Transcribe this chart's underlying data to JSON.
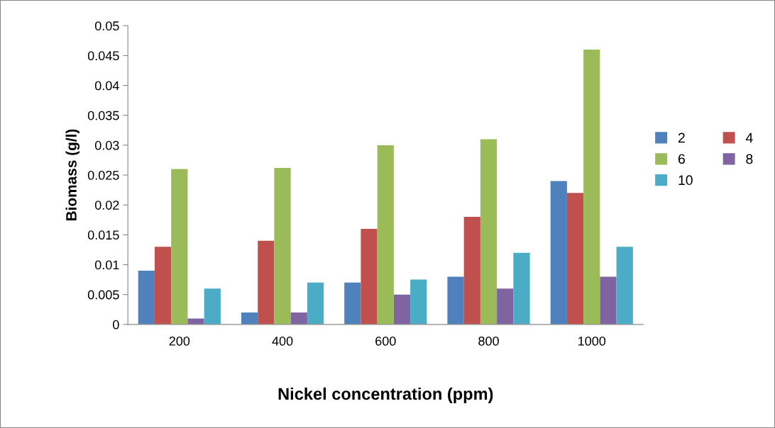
{
  "chart_data": {
    "type": "bar",
    "xlabel": "Nickel concentration (ppm)",
    "ylabel": "Biomass (g/l)",
    "categories": [
      "200",
      "400",
      "600",
      "800",
      "1000"
    ],
    "series": [
      {
        "name": "2",
        "color": "#4f81bd",
        "values": [
          0.009,
          0.002,
          0.007,
          0.008,
          0.024
        ]
      },
      {
        "name": "4",
        "color": "#c0504d",
        "values": [
          0.013,
          0.014,
          0.016,
          0.018,
          0.022
        ]
      },
      {
        "name": "6",
        "color": "#9bbb59",
        "values": [
          0.026,
          0.0262,
          0.03,
          0.031,
          0.046
        ]
      },
      {
        "name": "8",
        "color": "#8064a2",
        "values": [
          0.001,
          0.002,
          0.005,
          0.006,
          0.008
        ]
      },
      {
        "name": "10",
        "color": "#4bacc6",
        "values": [
          0.006,
          0.007,
          0.0075,
          0.012,
          0.013
        ]
      }
    ],
    "ylim": [
      0,
      0.05
    ],
    "yticks": [
      0,
      0.005,
      0.01,
      0.015,
      0.02,
      0.025,
      0.03,
      0.035,
      0.04,
      0.045,
      0.05
    ],
    "grid": false,
    "legend": "right"
  }
}
